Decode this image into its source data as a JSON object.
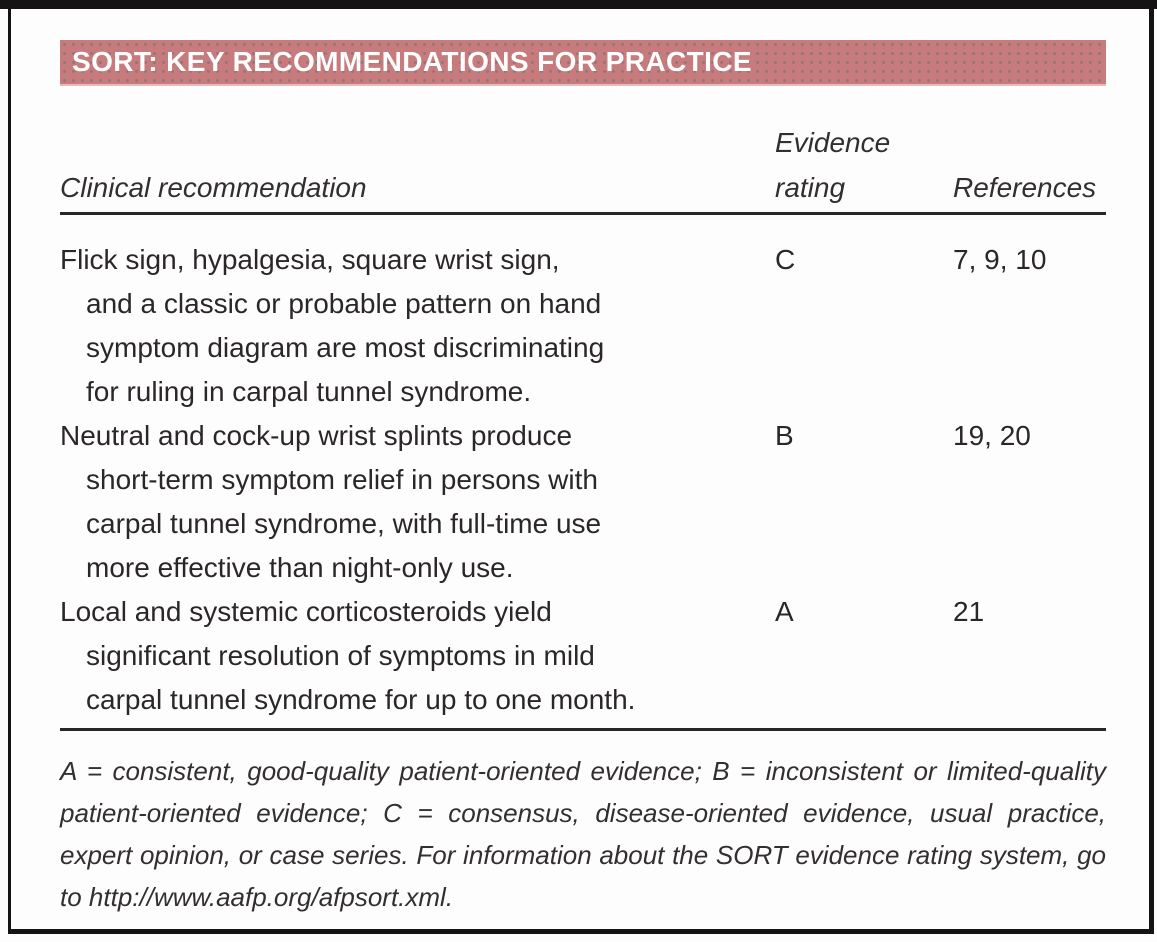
{
  "title": "SORT: KEY RECOMMENDATIONS FOR PRACTICE",
  "colors": {
    "title_bar_bg": "#c87b7d",
    "title_text": "#ffffff",
    "body_text": "#2b2728",
    "rule": "#2a2627",
    "frame": "#161314"
  },
  "table": {
    "columns": {
      "recommendation": "Clinical recommendation",
      "evidence": [
        "Evidence",
        "rating"
      ],
      "references": "References"
    },
    "rows": [
      {
        "recommendation": [
          "Flick sign, hypalgesia, square wrist sign,",
          "and a classic or probable pattern on hand",
          "symptom diagram are most discriminating",
          "for ruling in carpal tunnel syndrome."
        ],
        "evidence": "C",
        "references": "7, 9, 10"
      },
      {
        "recommendation": [
          "Neutral and cock-up wrist splints produce",
          "short-term symptom relief in persons with",
          "carpal tunnel syndrome, with full-time use",
          "more effective than night-only use."
        ],
        "evidence": "B",
        "references": "19, 20"
      },
      {
        "recommendation": [
          "Local and systemic corticosteroids yield",
          "significant resolution of symptoms in mild",
          "carpal tunnel syndrome for up to one month."
        ],
        "evidence": "A",
        "references": "21"
      }
    ]
  },
  "footnote": "A = consistent, good-quality patient-oriented evidence; B = inconsistent or limited-quality patient-oriented evidence; C = consensus, disease-oriented evidence, usual practice, expert opinion, or case series. For information about the SORT evidence rating system, go to http://www.aafp.org/afpsort.xml."
}
